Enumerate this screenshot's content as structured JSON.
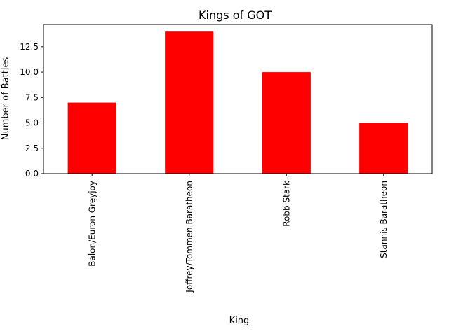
{
  "chart_data": {
    "type": "bar",
    "title": "Kings of GOT",
    "xlabel": "King",
    "ylabel": "Number of Battles",
    "categories": [
      "Balon/Euron Greyjoy",
      "Joffrey/Tommen Baratheon",
      "Robb Stark",
      "Stannis Baratheon"
    ],
    "values": [
      7,
      14,
      10,
      5
    ],
    "ylim": [
      0,
      14.7
    ],
    "yticks": [
      0.0,
      2.5,
      5.0,
      7.5,
      10.0,
      12.5
    ],
    "ytick_labels": [
      "0.0",
      "2.5",
      "5.0",
      "7.5",
      "10.0",
      "12.5"
    ],
    "bar_color": "#ff0000",
    "grid": false,
    "legend": "none"
  }
}
